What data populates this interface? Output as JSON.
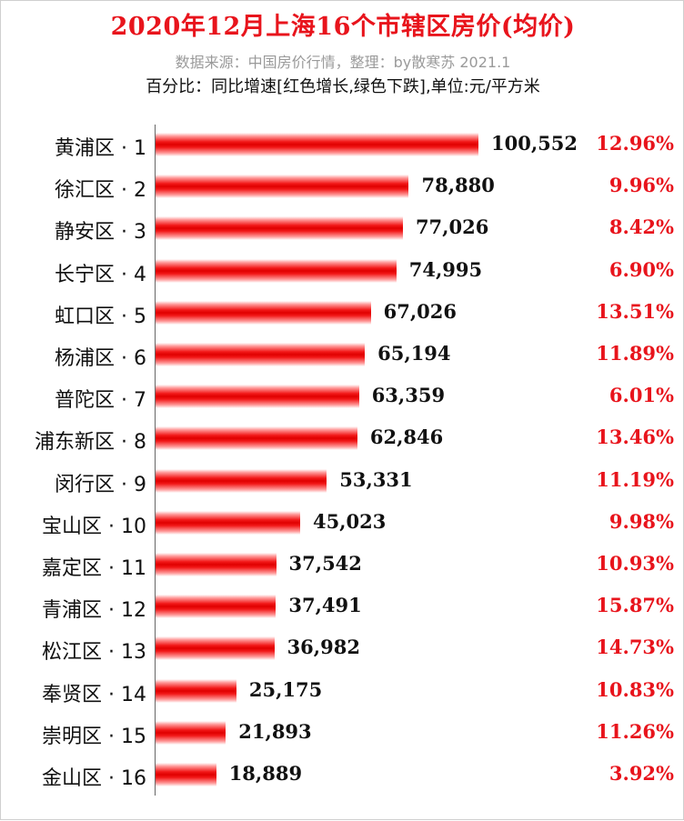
{
  "chart_data": {
    "type": "bar",
    "orientation": "horizontal",
    "title": "2020年12月上海16个市辖区房价(均价)",
    "subtitle": "数据来源：中国房价行情，整理：by散寒苏  2021.1",
    "note": "百分比：同比增速[红色增长,绿色下跌],单位:元/平方米",
    "categories": [
      "黄浦区 · 1",
      "徐汇区 · 2",
      "静安区 · 3",
      "长宁区 · 4",
      "虹口区 · 5",
      "杨浦区 · 6",
      "普陀区 · 7",
      "浦东新区 · 8",
      "闵行区 · 9",
      "宝山区 · 10",
      "嘉定区 · 11",
      "青浦区 · 12",
      "松江区 · 13",
      "奉贤区 · 14",
      "崇明区 · 15",
      "金山区 · 16"
    ],
    "values": [
      100552,
      78880,
      77026,
      74995,
      67026,
      65194,
      63359,
      62846,
      53331,
      45023,
      37542,
      37491,
      36982,
      25175,
      21893,
      18889
    ],
    "value_labels": [
      "100,552",
      "78,880",
      "77,026",
      "74,995",
      "67,026",
      "65,194",
      "63,359",
      "62,846",
      "53,331",
      "45,023",
      "37,542",
      "37,491",
      "36,982",
      "25,175",
      "21,893",
      "18,889"
    ],
    "growth_labels": [
      "12.96%",
      "9.96%",
      "8.42%",
      "6.90%",
      "13.51%",
      "11.89%",
      "6.01%",
      "13.46%",
      "11.19%",
      "9.98%",
      "10.93%",
      "15.87%",
      "14.73%",
      "10.83%",
      "11.26%",
      "3.92%"
    ],
    "xlim": [
      0,
      100552
    ],
    "grid": false,
    "colors": {
      "bar": "#e00000",
      "title": "#e8141c",
      "growth_up": "#e8141c",
      "subtitle": "#9a9a9a"
    }
  }
}
